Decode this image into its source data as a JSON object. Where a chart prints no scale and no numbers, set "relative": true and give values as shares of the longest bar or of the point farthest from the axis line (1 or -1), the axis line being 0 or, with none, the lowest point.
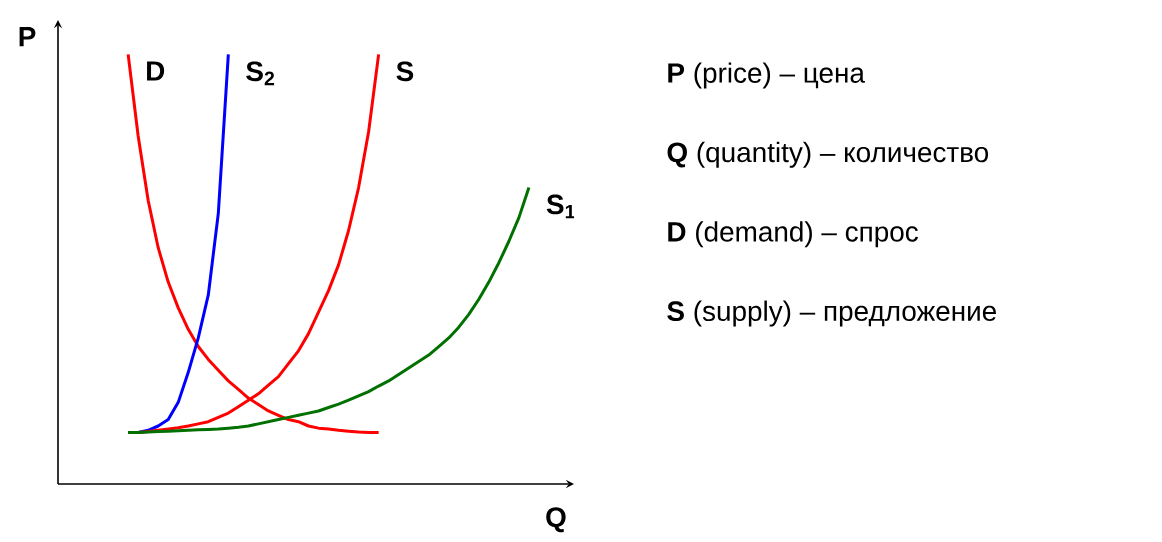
{
  "chart_data": [
    {
      "type": "line",
      "relative": true,
      "xlabel": "Q",
      "ylabel": "P",
      "categories": [
        null,
        null,
        null,
        null,
        null,
        null,
        null,
        null,
        null,
        null,
        null,
        null,
        null,
        null,
        null,
        null,
        null,
        null,
        null,
        null,
        null,
        null,
        null,
        null,
        null,
        null,
        null,
        null,
        null,
        null,
        null,
        null,
        null,
        null,
        null,
        null,
        null,
        null,
        null,
        null,
        null
      ],
      "legend": false,
      "marker": "none",
      "line_style": "solid",
      "series": [
        {
          "name": "D",
          "color": "#ff0000",
          "values": [
            1.0,
            0.81,
            0.66,
            0.55,
            0.47,
            0.41,
            0.36,
            0.32,
            0.29,
            0.265,
            0.24,
            0.22,
            0.2,
            0.185,
            0.17,
            0.16,
            0.15,
            0.145,
            0.135,
            0.13,
            0.128,
            0.125,
            0.123,
            0.121,
            0.12,
            0.12,
            null,
            null,
            null,
            null,
            null,
            null,
            null,
            null,
            null,
            null,
            null,
            null,
            null,
            null,
            null
          ]
        },
        {
          "name": "S$_{2}$",
          "color": "#0000ff",
          "values": [
            0.12,
            0.12,
            0.125,
            0.135,
            0.15,
            0.19,
            0.26,
            0.34,
            0.44,
            0.63,
            1.0,
            null,
            null,
            null,
            null,
            null,
            null,
            null,
            null,
            null,
            null,
            null,
            null,
            null,
            null,
            null,
            null,
            null,
            null,
            null,
            null,
            null,
            null,
            null,
            null,
            null,
            null,
            null,
            null,
            null,
            null
          ]
        },
        {
          "name": "S",
          "color": "#ff0000",
          "values": [
            0.12,
            0.12,
            0.122,
            0.125,
            0.128,
            0.131,
            0.135,
            0.14,
            0.145,
            0.155,
            0.165,
            0.18,
            0.195,
            0.21,
            0.23,
            0.25,
            0.28,
            0.31,
            0.35,
            0.4,
            0.45,
            0.51,
            0.59,
            0.69,
            0.82,
            1.0,
            null,
            null,
            null,
            null,
            null,
            null,
            null,
            null,
            null,
            null,
            null,
            null,
            null,
            null,
            null
          ]
        },
        {
          "name": "S$_{1}$",
          "color": "#007000",
          "values": [
            0.12,
            0.12,
            0.121,
            0.122,
            0.123,
            0.124,
            0.125,
            0.126,
            0.127,
            0.128,
            0.13,
            0.132,
            0.135,
            0.14,
            0.145,
            0.15,
            0.155,
            0.16,
            0.165,
            0.17,
            0.178,
            0.186,
            0.195,
            0.205,
            0.215,
            0.228,
            0.24,
            0.255,
            0.27,
            0.285,
            0.3,
            0.32,
            0.34,
            0.365,
            0.395,
            0.43,
            0.47,
            0.515,
            0.565,
            0.62,
            0.69
          ]
        }
      ]
    },
    {
      "type": "other",
      "annotations": [
        "**P** (price) – цена",
        "**Q** (quantity) – количество",
        "**D** (demand) – спрос",
        "**S** (supply) – предложение"
      ]
    }
  ]
}
